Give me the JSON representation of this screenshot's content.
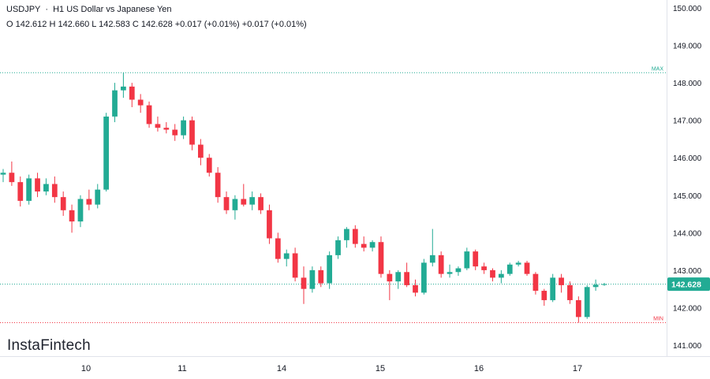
{
  "header": {
    "symbol": "USDJPY",
    "description": "H1 US Dollar vs Japanese Yen",
    "ohlc": {
      "o_label": "O",
      "o": "142.612",
      "h_label": "H",
      "h": "142.660",
      "l_label": "L",
      "l": "142.583",
      "c_label": "C",
      "c": "142.628",
      "change": "+0.017 (+0.01%)",
      "change2": "+0.017 (+0.01%)"
    }
  },
  "logo": "InstaFintech",
  "colors": {
    "up": "#22ab94",
    "down": "#f23645",
    "max_line": "#22ab94",
    "min_line": "#f23645",
    "last_price_bg": "#22ab94",
    "grid": "#f0f3fa",
    "axis_text": "#131722"
  },
  "chart_data": {
    "type": "candlestick",
    "symbol": "USDJPY",
    "timeframe": "H1",
    "title": "US Dollar vs Japanese Yen",
    "x_ticks": [
      "10",
      "11",
      "14",
      "15",
      "16",
      "17"
    ],
    "y_ticks": [
      "141.000",
      "142.000",
      "143.000",
      "144.000",
      "145.000",
      "146.000",
      "147.000",
      "148.000",
      "149.000",
      "150.000"
    ],
    "ylim": [
      140.8,
      150.1
    ],
    "grid": false,
    "max_label": "MAX",
    "max_value": 148.27,
    "min_label": "MIN",
    "min_value": 141.6,
    "last_price": 142.628,
    "last_price_label": "142.628",
    "candles": [
      [
        145.55,
        145.7,
        145.35,
        145.6
      ],
      [
        145.6,
        145.9,
        145.25,
        145.35
      ],
      [
        145.35,
        145.5,
        144.7,
        144.85
      ],
      [
        144.85,
        145.55,
        144.75,
        145.45
      ],
      [
        145.45,
        145.6,
        144.95,
        145.1
      ],
      [
        145.1,
        145.45,
        145.0,
        145.3
      ],
      [
        145.3,
        145.5,
        144.8,
        144.95
      ],
      [
        144.95,
        145.1,
        144.45,
        144.6
      ],
      [
        144.6,
        144.75,
        144.0,
        144.3
      ],
      [
        144.3,
        145.0,
        144.15,
        144.9
      ],
      [
        144.9,
        145.15,
        144.6,
        144.75
      ],
      [
        144.75,
        145.3,
        144.65,
        145.15
      ],
      [
        145.15,
        147.2,
        145.1,
        147.1
      ],
      [
        147.1,
        148.0,
        146.95,
        147.8
      ],
      [
        147.8,
        148.27,
        147.6,
        147.9
      ],
      [
        147.9,
        148.0,
        147.35,
        147.55
      ],
      [
        147.55,
        147.7,
        147.2,
        147.4
      ],
      [
        147.4,
        147.5,
        146.8,
        146.9
      ],
      [
        146.9,
        147.1,
        146.7,
        146.8
      ],
      [
        146.8,
        146.95,
        146.65,
        146.75
      ],
      [
        146.75,
        146.9,
        146.45,
        146.6
      ],
      [
        146.6,
        147.1,
        146.5,
        147.0
      ],
      [
        147.0,
        147.1,
        146.2,
        146.35
      ],
      [
        146.35,
        146.5,
        145.8,
        146.0
      ],
      [
        146.0,
        146.1,
        145.5,
        145.6
      ],
      [
        145.6,
        145.75,
        144.8,
        144.95
      ],
      [
        144.95,
        145.1,
        144.5,
        144.6
      ],
      [
        144.6,
        145.0,
        144.35,
        144.9
      ],
      [
        144.9,
        145.3,
        144.7,
        144.75
      ],
      [
        144.75,
        145.1,
        144.6,
        144.95
      ],
      [
        144.95,
        145.05,
        144.5,
        144.6
      ],
      [
        144.6,
        144.75,
        143.7,
        143.85
      ],
      [
        143.85,
        144.0,
        143.2,
        143.3
      ],
      [
        143.3,
        143.55,
        143.1,
        143.45
      ],
      [
        143.45,
        143.6,
        142.7,
        142.8
      ],
      [
        142.8,
        143.1,
        142.1,
        142.5
      ],
      [
        142.5,
        143.1,
        142.4,
        143.0
      ],
      [
        143.0,
        143.1,
        142.55,
        142.65
      ],
      [
        142.65,
        143.5,
        142.5,
        143.4
      ],
      [
        143.4,
        143.9,
        143.3,
        143.8
      ],
      [
        143.8,
        144.15,
        143.6,
        144.1
      ],
      [
        144.1,
        144.2,
        143.6,
        143.7
      ],
      [
        143.7,
        143.9,
        143.5,
        143.6
      ],
      [
        143.6,
        143.8,
        143.5,
        143.75
      ],
      [
        143.75,
        143.9,
        142.8,
        142.9
      ],
      [
        142.9,
        143.0,
        142.2,
        142.7
      ],
      [
        142.7,
        143.0,
        142.5,
        142.95
      ],
      [
        142.95,
        143.2,
        142.55,
        142.6
      ],
      [
        142.6,
        142.75,
        142.3,
        142.4
      ],
      [
        142.4,
        143.3,
        142.35,
        143.2
      ],
      [
        143.2,
        144.1,
        143.1,
        143.4
      ],
      [
        143.4,
        143.5,
        142.8,
        142.9
      ],
      [
        142.9,
        143.15,
        142.8,
        142.95
      ],
      [
        142.95,
        143.1,
        142.85,
        143.05
      ],
      [
        143.05,
        143.6,
        143.0,
        143.5
      ],
      [
        143.5,
        143.55,
        143.0,
        143.1
      ],
      [
        143.1,
        143.2,
        142.9,
        143.0
      ],
      [
        143.0,
        143.05,
        142.7,
        142.8
      ],
      [
        142.8,
        143.0,
        142.65,
        142.9
      ],
      [
        142.9,
        143.2,
        142.85,
        143.15
      ],
      [
        143.15,
        143.25,
        143.1,
        143.2
      ],
      [
        143.2,
        143.25,
        142.85,
        142.9
      ],
      [
        142.9,
        142.95,
        142.35,
        142.45
      ],
      [
        142.45,
        142.5,
        142.05,
        142.2
      ],
      [
        142.2,
        142.9,
        142.15,
        142.8
      ],
      [
        142.8,
        142.9,
        142.4,
        142.6
      ],
      [
        142.6,
        142.7,
        142.1,
        142.2
      ],
      [
        142.2,
        142.3,
        141.6,
        141.75
      ],
      [
        141.75,
        142.6,
        141.7,
        142.55
      ],
      [
        142.55,
        142.75,
        142.45,
        142.612
      ],
      [
        142.612,
        142.66,
        142.583,
        142.628
      ]
    ]
  }
}
